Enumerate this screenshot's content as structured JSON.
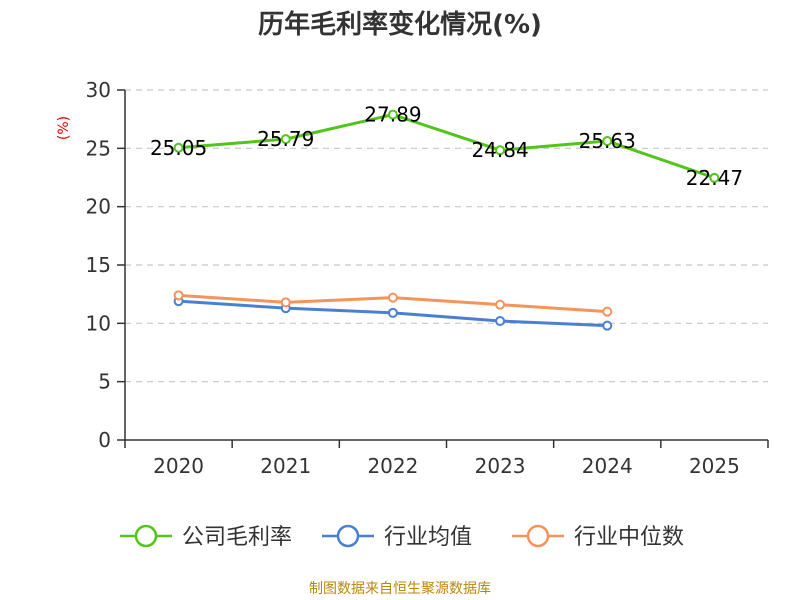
{
  "title": "历年毛利率变化情况(%)",
  "footer": "制图数据来自恒生聚源数据库",
  "chart_data": {
    "type": "line",
    "title": "历年毛利率变化情况(%)",
    "xlabel": "",
    "ylabel": "(%)",
    "categories": [
      "2020",
      "2021",
      "2022",
      "2023",
      "2024",
      "2025"
    ],
    "ylim": [
      0,
      30
    ],
    "yticks": [
      0,
      5,
      10,
      15,
      20,
      25,
      30
    ],
    "grid": true,
    "legend_position": "bottom",
    "series": [
      {
        "name": "公司毛利率",
        "color": "#52c41a",
        "values": [
          25.05,
          25.79,
          27.89,
          24.84,
          25.63,
          22.47
        ],
        "labels": [
          "25.05",
          "25.79",
          "27.89",
          "24.84",
          "25.63",
          "22.47"
        ]
      },
      {
        "name": "行业均值",
        "color": "#4a7fd4",
        "values": [
          11.9,
          11.3,
          10.9,
          10.2,
          9.8,
          null
        ]
      },
      {
        "name": "行业中位数",
        "color": "#f4935b",
        "values": [
          12.4,
          11.8,
          12.2,
          11.6,
          11.0,
          null
        ]
      }
    ]
  }
}
